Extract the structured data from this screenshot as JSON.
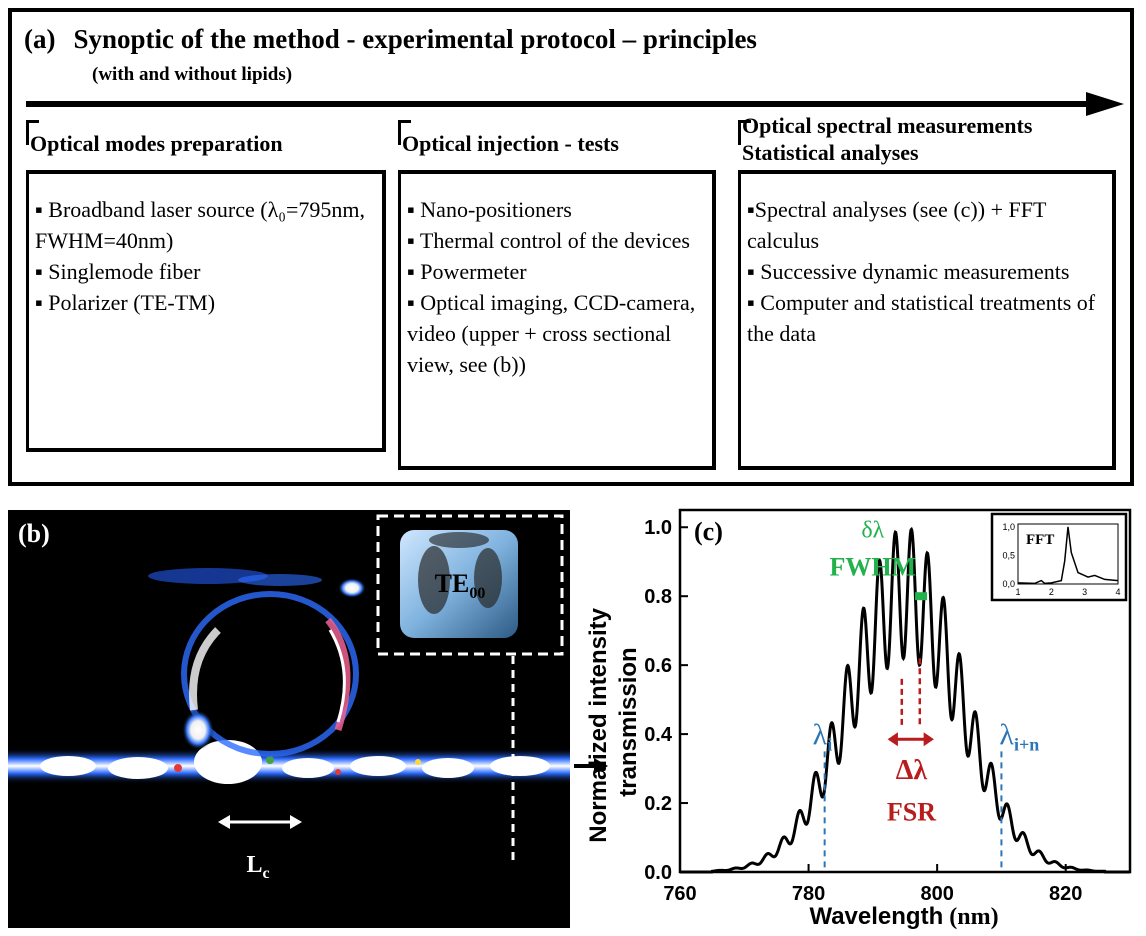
{
  "panel_a": {
    "label": "(a)",
    "title": "Synoptic of the method - experimental protocol – principles",
    "subtitle": "(with and without lipids)",
    "columns": [
      {
        "heading_lines": [
          "Optical modes preparation"
        ],
        "items": [
          "▪ Broadband laser source (λ₀=795nm, FWHM=40nm)",
          "▪ Singlemode fiber",
          "▪ Polarizer (TE-TM)"
        ]
      },
      {
        "heading_lines": [
          "Optical injection - tests"
        ],
        "items": [
          "▪ Nano-positioners",
          "▪ Thermal control of the devices",
          "▪ Powermeter",
          "▪ Optical imaging, CCD-camera, video (upper + cross sectional view, see (b))"
        ]
      },
      {
        "heading_lines": [
          "Optical spectral measurements",
          "Statistical analyses"
        ],
        "items": [
          "▪Spectral analyses (see (c)) + FFT calculus",
          "▪ Successive dynamic measurements",
          "▪ Computer and statistical treatments of the data"
        ]
      }
    ]
  },
  "panel_b": {
    "label": "(b)",
    "inset_label_main": "TE",
    "inset_label_sub": "00",
    "coupling_label_main": "L",
    "coupling_label_sub": "c"
  },
  "chart_data": {
    "type": "line",
    "label": "(c)",
    "xlabel": "Wavelength",
    "xlabel_unit": "(nm)",
    "ylabel_lines": [
      "Normalized intensity",
      "transmission"
    ],
    "xlim": [
      760,
      830
    ],
    "ylim": [
      0,
      1.05
    ],
    "xticks": [
      760,
      780,
      800,
      820
    ],
    "yticks": [
      "0.0",
      "0.2",
      "0.4",
      "0.6",
      "0.8",
      "1.0"
    ],
    "envelope_center_nm": 795,
    "fsr_nm": 2.5,
    "series": [
      {
        "points": [
          [
            760,
            0.0
          ],
          [
            764,
            0.0
          ],
          [
            766,
            0.02
          ],
          [
            768,
            0.05
          ],
          [
            770,
            0.08
          ],
          [
            772,
            0.15
          ],
          [
            774,
            0.19
          ],
          [
            776,
            0.18
          ],
          [
            778,
            0.25
          ],
          [
            780,
            0.29
          ],
          [
            781,
            0.32
          ],
          [
            782.5,
            0.18
          ],
          [
            784,
            0.41
          ],
          [
            786,
            0.48
          ],
          [
            788,
            0.57
          ],
          [
            790,
            0.67
          ],
          [
            792,
            0.75
          ],
          [
            794,
            0.85
          ],
          [
            795.5,
            0.95
          ],
          [
            797,
            0.9
          ],
          [
            798.5,
            1.0
          ],
          [
            800,
            0.8
          ],
          [
            802,
            0.72
          ],
          [
            804,
            0.6
          ],
          [
            806,
            0.48
          ],
          [
            808,
            0.38
          ],
          [
            810,
            0.22
          ],
          [
            812,
            0.24
          ],
          [
            814,
            0.14
          ],
          [
            818,
            0.02
          ],
          [
            822,
            0.0
          ],
          [
            830,
            0.0
          ]
        ]
      }
    ],
    "annotations": {
      "delta_lambda_small": "δλ",
      "fwhm": "FWHM",
      "delta_lambda_big": "Δλ",
      "fsr": "FSR",
      "lambda_i_main": "λ",
      "lambda_i_sub": "i",
      "lambda_in_main": "λ",
      "lambda_in_sub": "i+n",
      "lambda_i_x": 782.5,
      "lambda_in_x": 810,
      "fsr_x1": 794.5,
      "fsr_x2": 797
    },
    "inset": {
      "title": "FFT",
      "xticks": [
        "1",
        "2",
        "3",
        "4"
      ],
      "yticks": [
        "0,0",
        "0,5",
        "1,0"
      ],
      "xlim": [
        1,
        4
      ],
      "ylim": [
        0,
        1.05
      ],
      "points": [
        [
          1.0,
          0.02
        ],
        [
          1.5,
          0.01
        ],
        [
          1.7,
          0.06
        ],
        [
          1.8,
          0.01
        ],
        [
          2.0,
          0.02
        ],
        [
          2.3,
          0.06
        ],
        [
          2.4,
          0.4
        ],
        [
          2.5,
          1.0
        ],
        [
          2.6,
          0.55
        ],
        [
          2.8,
          0.2
        ],
        [
          3.1,
          0.12
        ],
        [
          3.3,
          0.15
        ],
        [
          3.6,
          0.08
        ],
        [
          4.0,
          0.06
        ]
      ]
    },
    "colors": {
      "curve": "#000000",
      "fwhm": "#22b14c",
      "fsr": "#b91c1c",
      "lambda": "#2e75b6"
    }
  }
}
